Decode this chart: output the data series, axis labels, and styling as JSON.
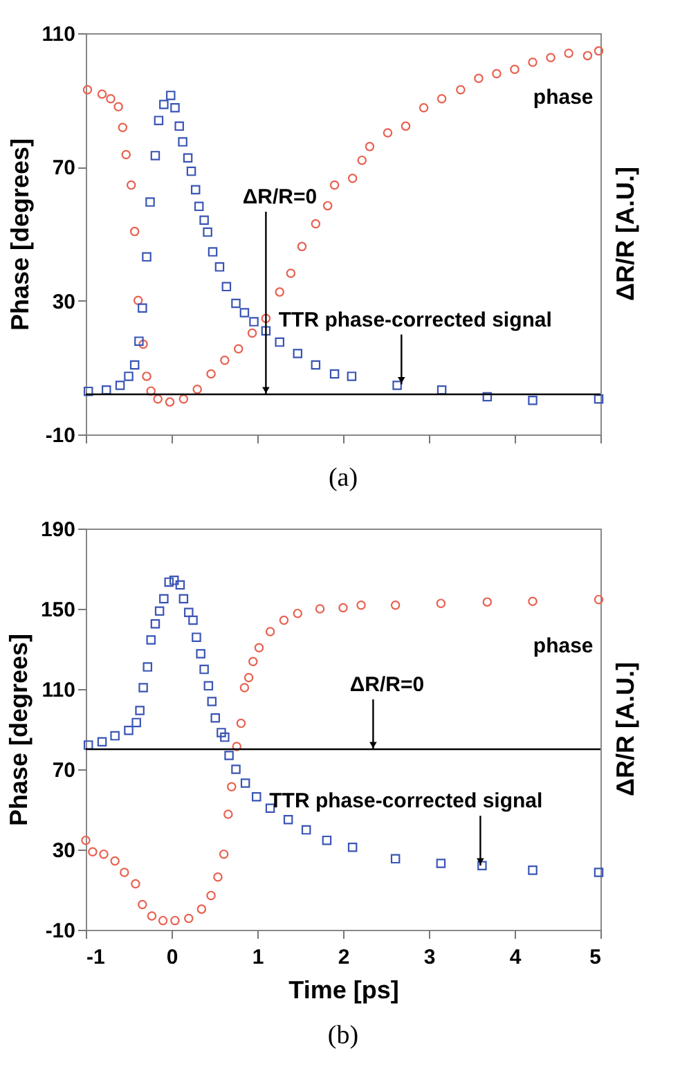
{
  "chart_data": [
    {
      "type": "scatter",
      "ylabel": "Phase [degrees]",
      "y2label": "ΔR/R [A.U.]",
      "xlim": [
        -1,
        5
      ],
      "xticks": [
        -1,
        0,
        1,
        2,
        3,
        4,
        5
      ],
      "ylim": [
        -10,
        110
      ],
      "yticks": [
        -10,
        30,
        70,
        110
      ],
      "tick_labels": "y",
      "grid": false,
      "series": [
        {
          "name": "phase",
          "color": "#e8604f",
          "marker": "circle",
          "x": [
            -0.98,
            -0.81,
            -0.71,
            -0.62,
            -0.57,
            -0.53,
            -0.47,
            -0.43,
            -0.39,
            -0.33,
            -0.29,
            -0.24,
            -0.16,
            -0.02,
            0.14,
            0.3,
            0.46,
            0.62,
            0.78,
            0.94,
            1.1,
            1.26,
            1.39,
            1.52,
            1.68,
            1.82,
            1.9,
            2.11,
            2.22,
            2.31,
            2.52,
            2.73,
            2.94,
            3.15,
            3.37,
            3.58,
            3.79,
            4.0,
            4.21,
            4.42,
            4.63,
            4.85,
            4.98
          ],
          "values": [
            93.1,
            91.8,
            90.4,
            88,
            81.8,
            73.7,
            64.6,
            50.7,
            30.1,
            17,
            7.4,
            3,
            0.6,
            -0.3,
            0.6,
            3.5,
            8.1,
            12.2,
            15.6,
            20.3,
            24.7,
            32.6,
            38.2,
            46.2,
            53,
            58.4,
            64.6,
            66.6,
            72,
            76.1,
            80.2,
            82.2,
            87.7,
            90.4,
            93.1,
            96.5,
            97.9,
            99.2,
            101.3,
            102.7,
            104,
            103.3,
            104.7
          ]
        },
        {
          "color": "#3a55b4",
          "marker": "square",
          "x": [
            -0.97,
            -0.76,
            -0.6,
            -0.5,
            -0.43,
            -0.38,
            -0.34,
            -0.29,
            -0.25,
            -0.19,
            -0.15,
            -0.09,
            -0.01,
            0.04,
            0.09,
            0.13,
            0.19,
            0.23,
            0.28,
            0.32,
            0.38,
            0.42,
            0.48,
            0.56,
            0.64,
            0.75,
            0.85,
            0.96,
            1.1,
            1.26,
            1.47,
            1.68,
            1.9,
            2.1,
            2.63,
            3.15,
            3.68,
            4.21,
            4.98
          ],
          "values": [
            2.9,
            3.3,
            4.7,
            7.4,
            10.8,
            17.9,
            27.8,
            43.1,
            59.5,
            73.4,
            83.9,
            88.7,
            91.4,
            87.7,
            82.2,
            77.5,
            72.7,
            68.7,
            63.2,
            58.2,
            54.1,
            50.5,
            44.6,
            40.1,
            34.2,
            29.2,
            26.4,
            23.7,
            21,
            17.6,
            14.2,
            10.8,
            8.1,
            7.4,
            4.7,
            3.3,
            1.3,
            0.2,
            0.6
          ]
        }
      ],
      "ref_lines": [
        {
          "axis": "y",
          "value": 2,
          "color": "#000000"
        }
      ],
      "annotations": [
        {
          "text": "ΔR/R=0",
          "x": 1.1,
          "y": 2
        },
        {
          "text": "TTR phase-corrected signal",
          "x": 2.68,
          "y": 5
        },
        "(a)"
      ]
    },
    {
      "type": "scatter",
      "xlabel": "Time [ps]",
      "ylabel": "Phase [degrees]",
      "y2label": "ΔR/R [A.U.]",
      "xlim": [
        -1,
        5
      ],
      "xticks": [
        -1,
        0,
        1,
        2,
        3,
        4,
        5
      ],
      "ylim": [
        -10,
        190
      ],
      "yticks": [
        -10,
        30,
        70,
        110,
        150,
        190
      ],
      "grid": false,
      "series": [
        {
          "name": "phase",
          "color": "#e8604f",
          "marker": "circle",
          "x": [
            -1,
            -0.92,
            -0.79,
            -0.66,
            -0.55,
            -0.42,
            -0.34,
            -0.23,
            -0.1,
            0.04,
            0.2,
            0.35,
            0.46,
            0.54,
            0.61,
            0.66,
            0.7,
            0.76,
            0.81,
            0.85,
            0.9,
            0.95,
            1.02,
            1.15,
            1.31,
            1.47,
            1.73,
            2.0,
            2.21,
            2.61,
            3.14,
            3.68,
            4.21,
            4.98
          ],
          "values": [
            34.6,
            28.9,
            27.7,
            24.3,
            18.6,
            12.9,
            2.6,
            -3.1,
            -5.4,
            -5.4,
            -4.3,
            0.3,
            7.1,
            16.3,
            27.7,
            47.6,
            61.3,
            81.4,
            92.9,
            110.7,
            115.7,
            123.7,
            130.6,
            138.6,
            144.3,
            147.7,
            150,
            150.5,
            151.8,
            151.8,
            152.7,
            153.4,
            153.7,
            154.6
          ]
        },
        {
          "color": "#3a55b4",
          "marker": "square",
          "x": [
            -0.97,
            -0.81,
            -0.66,
            -0.5,
            -0.41,
            -0.37,
            -0.33,
            -0.28,
            -0.24,
            -0.19,
            -0.14,
            -0.09,
            -0.03,
            0.03,
            0.1,
            0.14,
            0.2,
            0.25,
            0.29,
            0.34,
            0.38,
            0.43,
            0.47,
            0.51,
            0.58,
            0.62,
            0.67,
            0.75,
            0.86,
            0.99,
            1.15,
            1.36,
            1.57,
            1.81,
            2.11,
            2.61,
            3.14,
            3.62,
            4.21,
            4.98
          ],
          "values": [
            82.1,
            83.7,
            86.7,
            89.4,
            93.3,
            99.3,
            110.7,
            121,
            134.5,
            142.5,
            148.9,
            155,
            163.3,
            164.2,
            161.9,
            155,
            148.2,
            144.3,
            135.8,
            127.6,
            119.8,
            111.6,
            103.8,
            95.6,
            88.3,
            86,
            76.9,
            70,
            63.1,
            56.3,
            50.6,
            44.9,
            39.8,
            34.6,
            31.1,
            25.4,
            23.1,
            22,
            19.7,
            18.6
          ]
        }
      ],
      "ref_lines": [
        {
          "axis": "y",
          "value": 80,
          "color": "#000000"
        }
      ],
      "annotations": [
        {
          "text": "ΔR/R=0",
          "x": 2.35,
          "y": 80
        },
        {
          "text": "TTR phase-corrected signal",
          "x": 3.6,
          "y": 22
        },
        "(b)"
      ]
    }
  ]
}
